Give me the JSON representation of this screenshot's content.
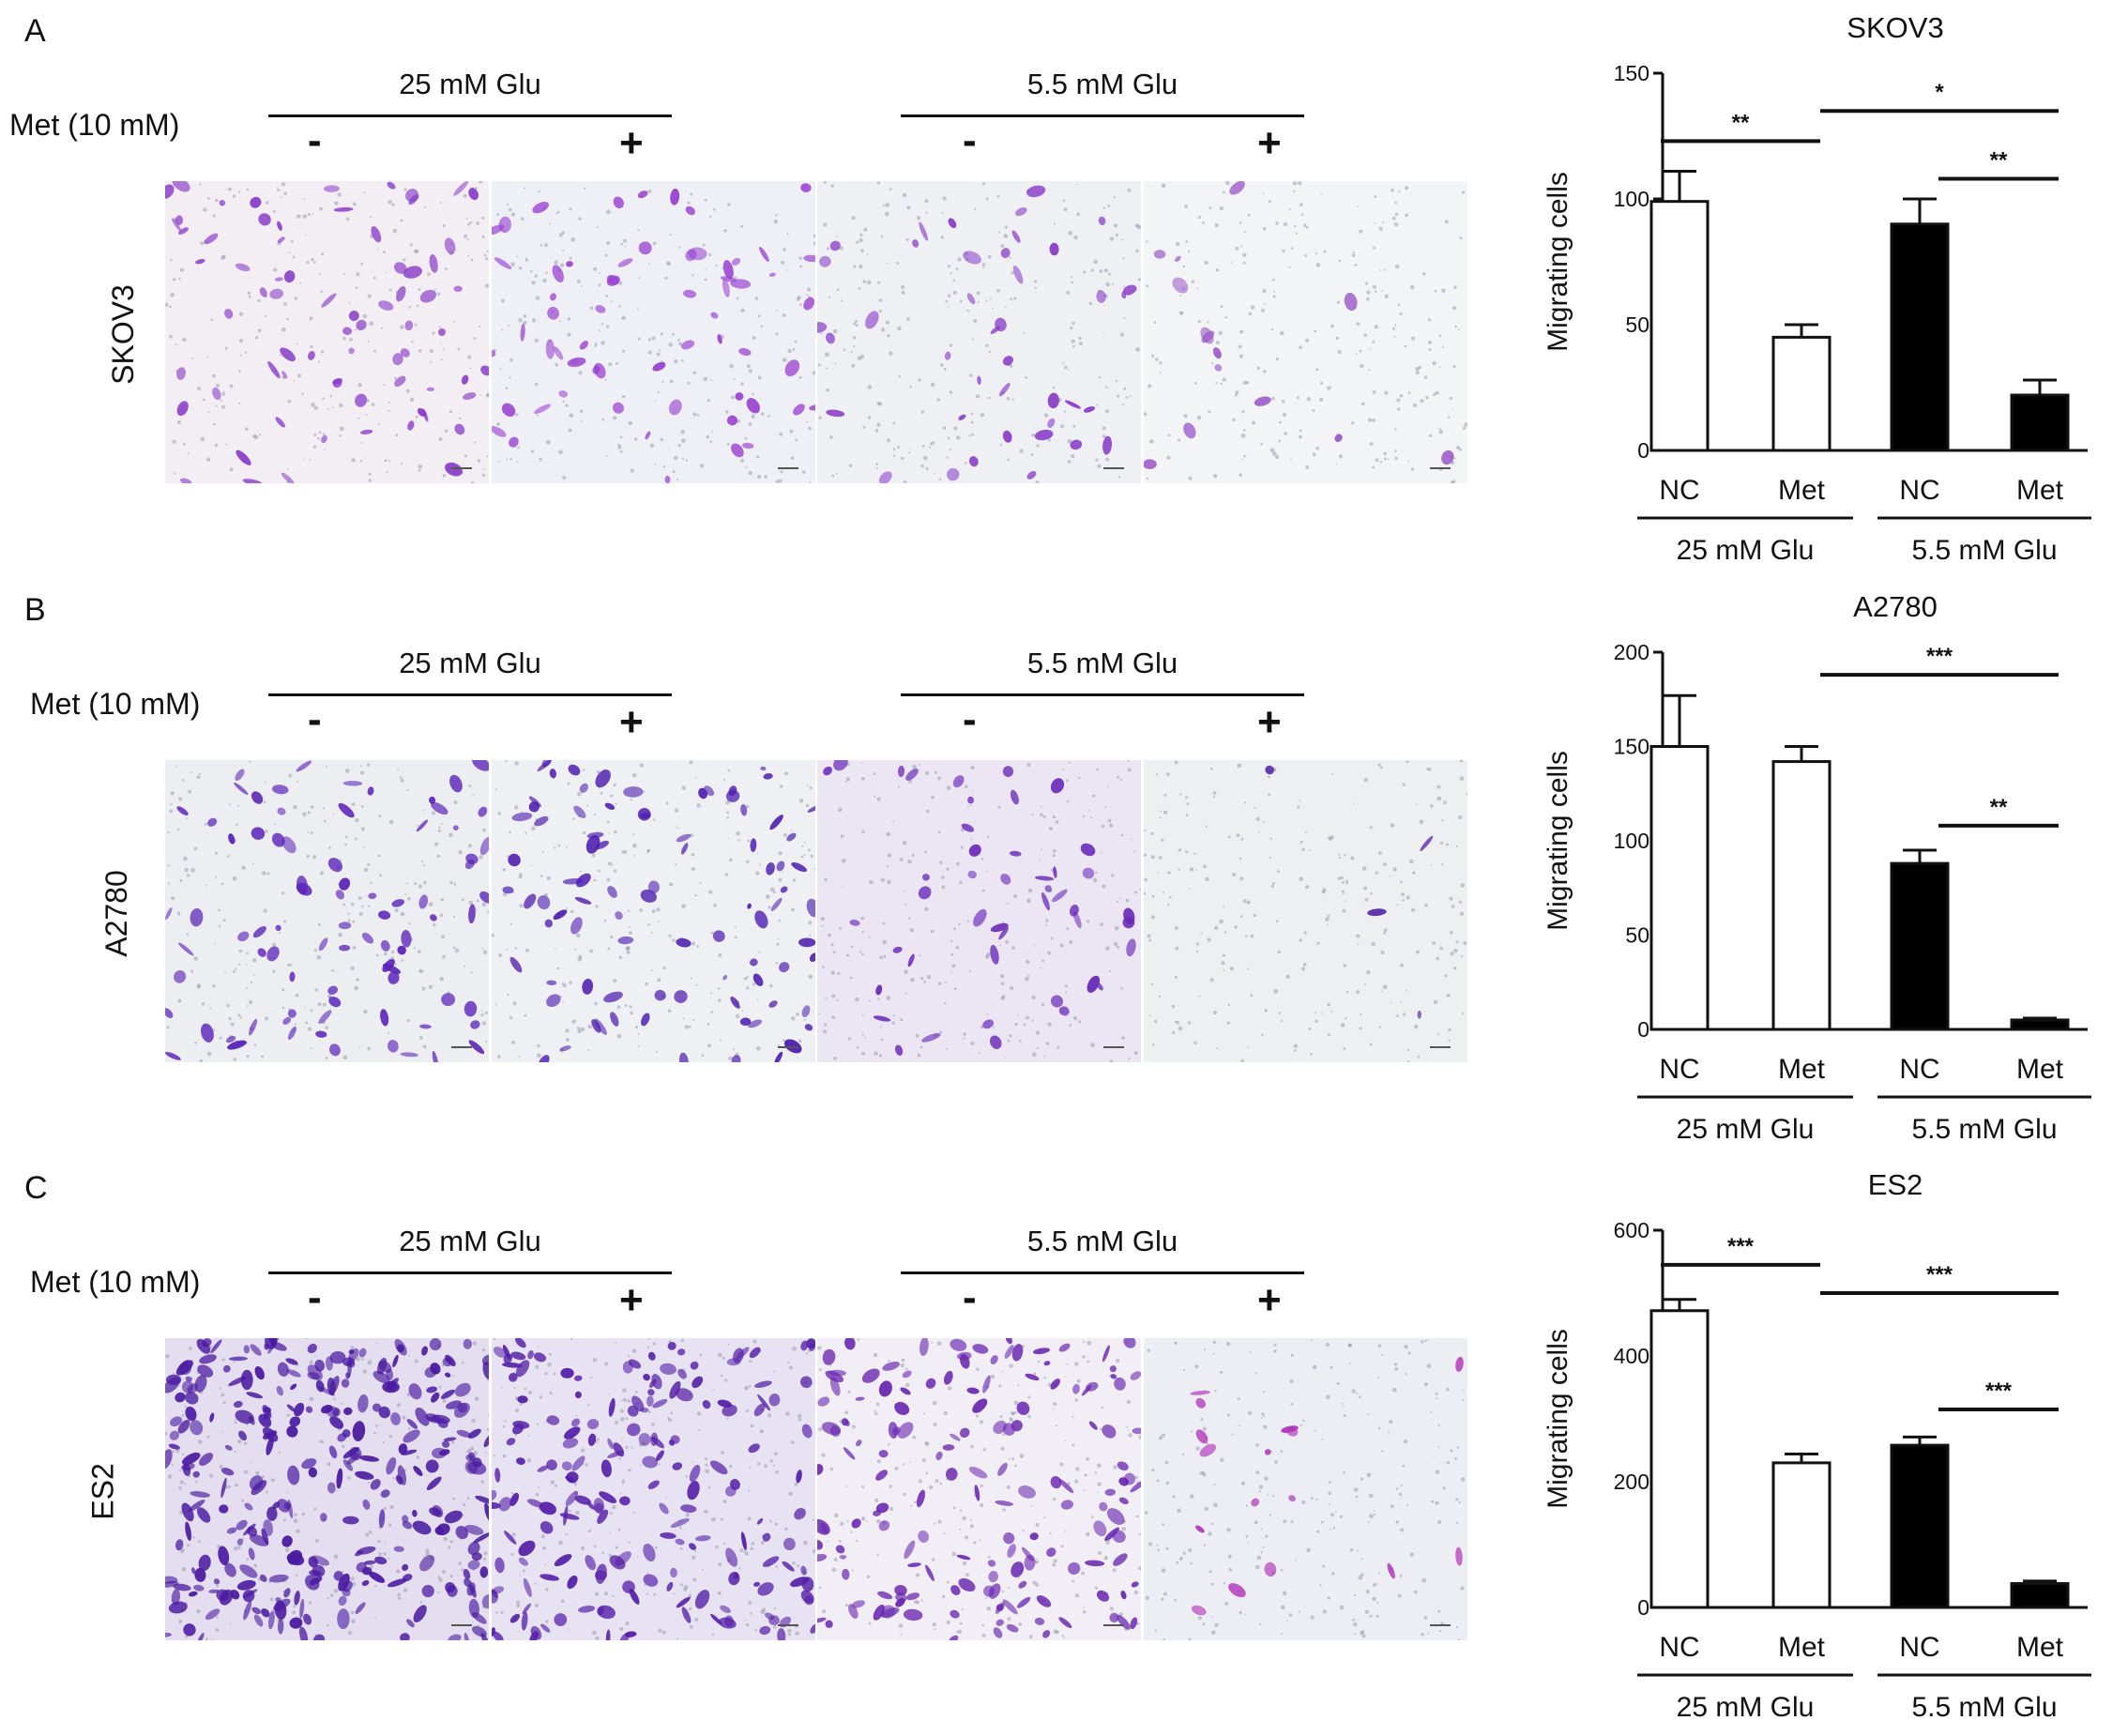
{
  "layout_labels": {
    "met_label": "Met (10 mM)",
    "group_high": "25 mM Glu",
    "group_low": "5.5 mM Glu",
    "minus": "-",
    "plus": "+"
  },
  "colors": {
    "purple_stain": "#7b2fbf",
    "dark_stain": "#4a1aa0",
    "bar_black": "#000000",
    "bar_white": "#ffffff"
  },
  "panels": [
    {
      "letter": "A",
      "cell_line": "SKOV3",
      "micrographs": [
        {
          "glucose": "25 mM Glu",
          "met": "-",
          "density": 70,
          "tint": "#f2eef4",
          "stain": "#8a3cc8"
        },
        {
          "glucose": "25 mM Glu",
          "met": "+",
          "density": 60,
          "tint": "#eef0f6",
          "stain": "#9a40d0"
        },
        {
          "glucose": "5.5 mM Glu",
          "met": "-",
          "density": 40,
          "tint": "#eef0f3",
          "stain": "#8a3cc8"
        },
        {
          "glucose": "5.5 mM Glu",
          "met": "+",
          "density": 14,
          "tint": "#f3f4f6",
          "stain": "#9a55c8"
        }
      ]
    },
    {
      "letter": "B",
      "cell_line": "A2780",
      "micrographs": [
        {
          "glucose": "25 mM Glu",
          "met": "-",
          "density": 80,
          "tint": "#eceef2",
          "stain": "#5a22b8"
        },
        {
          "glucose": "25 mM Glu",
          "met": "+",
          "density": 85,
          "tint": "#eef0f3",
          "stain": "#4d1db0"
        },
        {
          "glucose": "5.5 mM Glu",
          "met": "-",
          "density": 45,
          "tint": "#ece6f4",
          "stain": "#6a2ab8"
        },
        {
          "glucose": "5.5 mM Glu",
          "met": "+",
          "density": 4,
          "tint": "#eeeff1",
          "stain": "#4a1aa0"
        }
      ]
    },
    {
      "letter": "C",
      "cell_line": "ES2",
      "micrographs": [
        {
          "glucose": "25 mM Glu",
          "met": "-",
          "density": 300,
          "tint": "#e4def0",
          "stain": "#4a1aa0"
        },
        {
          "glucose": "25 mM Glu",
          "met": "+",
          "density": 180,
          "tint": "#e8e3f2",
          "stain": "#5520a8"
        },
        {
          "glucose": "5.5 mM Glu",
          "met": "-",
          "density": 150,
          "tint": "#f1eef6",
          "stain": "#6a28b0"
        },
        {
          "glucose": "5.5 mM Glu",
          "met": "+",
          "density": 16,
          "tint": "#eceef3",
          "stain": "#b030b8"
        }
      ]
    }
  ],
  "chart_data": [
    {
      "type": "bar",
      "title": "SKOV3",
      "ylabel": "Migrating cells",
      "ylim": [
        0,
        150
      ],
      "yticks": [
        0,
        50,
        100,
        150
      ],
      "categories": [
        "NC",
        "Met",
        "NC",
        "Met"
      ],
      "groups": [
        {
          "label": "25 mM Glu",
          "span": [
            0,
            1
          ]
        },
        {
          "label": "5.5 mM Glu",
          "span": [
            2,
            3
          ]
        }
      ],
      "values": [
        99,
        45,
        90,
        22
      ],
      "errors": [
        12,
        5,
        10,
        6
      ],
      "fills": [
        "white",
        "white",
        "black",
        "black"
      ],
      "significance": [
        {
          "from": 0,
          "to": 1,
          "label": "**",
          "level": 123
        },
        {
          "from": 1,
          "to": 3,
          "label": "*",
          "level": 135
        },
        {
          "from": 2,
          "to": 3,
          "label": "**",
          "level": 108
        }
      ]
    },
    {
      "type": "bar",
      "title": "A2780",
      "ylabel": "Migrating cells",
      "ylim": [
        0,
        200
      ],
      "yticks": [
        0,
        50,
        100,
        150,
        200
      ],
      "categories": [
        "NC",
        "Met",
        "NC",
        "Met"
      ],
      "groups": [
        {
          "label": "25 mM Glu",
          "span": [
            0,
            1
          ]
        },
        {
          "label": "5.5 mM Glu",
          "span": [
            2,
            3
          ]
        }
      ],
      "values": [
        150,
        142,
        88,
        5
      ],
      "errors": [
        27,
        8,
        7,
        1
      ],
      "fills": [
        "white",
        "white",
        "black",
        "black"
      ],
      "significance": [
        {
          "from": 1,
          "to": 3,
          "label": "***",
          "level": 188
        },
        {
          "from": 2,
          "to": 3,
          "label": "**",
          "level": 108
        }
      ]
    },
    {
      "type": "bar",
      "title": "ES2",
      "ylabel": "Migrating cells",
      "ylim": [
        0,
        600
      ],
      "yticks": [
        0,
        200,
        400,
        600
      ],
      "categories": [
        "NC",
        "Met",
        "NC",
        "Met"
      ],
      "groups": [
        {
          "label": "25 mM Glu",
          "span": [
            0,
            1
          ]
        },
        {
          "label": "5.5 mM Glu",
          "span": [
            2,
            3
          ]
        }
      ],
      "values": [
        472,
        230,
        258,
        38
      ],
      "errors": [
        18,
        14,
        13,
        4
      ],
      "fills": [
        "white",
        "white",
        "black",
        "black"
      ],
      "significance": [
        {
          "from": 0,
          "to": 1,
          "label": "***",
          "level": 545
        },
        {
          "from": 1,
          "to": 3,
          "label": "***",
          "level": 500
        },
        {
          "from": 2,
          "to": 3,
          "label": "***",
          "level": 315
        }
      ]
    }
  ]
}
